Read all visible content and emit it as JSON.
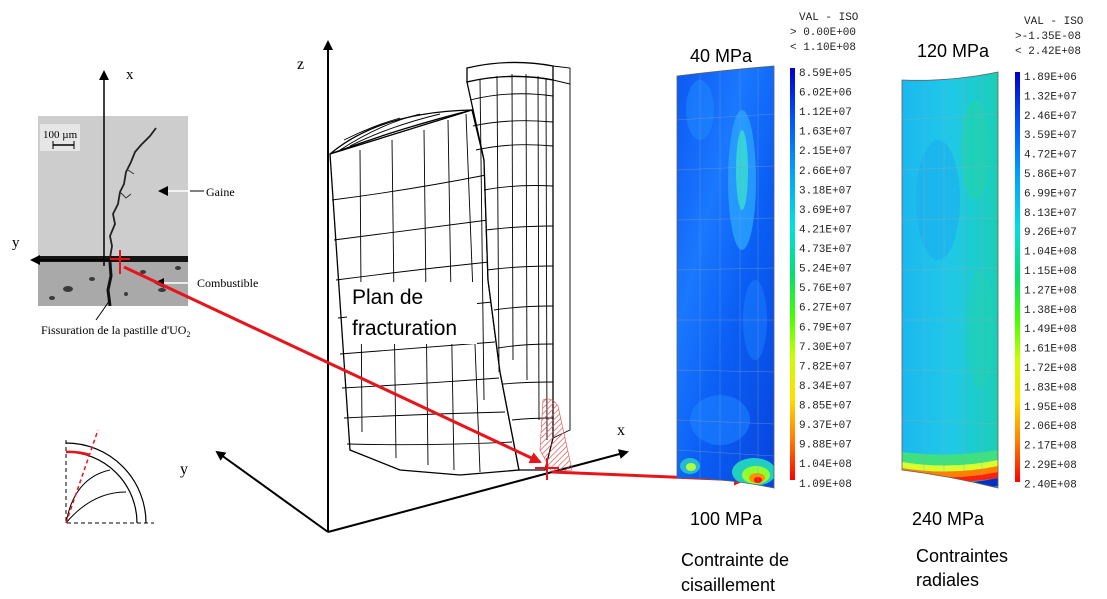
{
  "micrograph": {
    "axis_x": "x",
    "axis_y": "y",
    "scale_bar": "100 µm",
    "label_cladding": "Gaine",
    "label_fuel": "Combustible",
    "label_crack": "Fissuration de la pastille d'UO",
    "label_crack_sub": "2"
  },
  "mesh": {
    "axis_z": "z",
    "axis_x": "x",
    "axis_y": "y",
    "plane_label_line1": "Plan de",
    "plane_label_line2": "fracturation"
  },
  "shear_map": {
    "top_value": "40 MPa",
    "bottom_value": "100 MPa",
    "caption_line1": "Contrainte de",
    "caption_line2": "cisaillement",
    "legend_header": [
      "VAL - ISO",
      "> 0.00E+00",
      "< 1.10E+08"
    ],
    "legend_values": [
      "8.59E+05",
      "6.02E+06",
      "1.12E+07",
      "1.63E+07",
      "2.15E+07",
      "2.66E+07",
      "3.18E+07",
      "3.69E+07",
      "4.21E+07",
      "4.73E+07",
      "5.24E+07",
      "5.76E+07",
      "6.27E+07",
      "6.79E+07",
      "7.30E+07",
      "7.82E+07",
      "8.34E+07",
      "8.85E+07",
      "9.37E+07",
      "9.88E+07",
      "1.04E+08",
      "1.09E+08"
    ]
  },
  "radial_map": {
    "top_value": "120 MPa",
    "bottom_value": "240 MPa",
    "caption_line1": "Contraintes",
    "caption_line2": "radiales",
    "legend_header": [
      "VAL - ISO",
      ">-1.35E-08",
      "< 2.42E+08"
    ],
    "legend_values": [
      "1.89E+06",
      "1.32E+07",
      "2.46E+07",
      "3.59E+07",
      "4.72E+07",
      "5.86E+07",
      "6.99E+07",
      "8.13E+07",
      "9.26E+07",
      "1.04E+08",
      "1.15E+08",
      "1.27E+08",
      "1.38E+08",
      "1.49E+08",
      "1.61E+08",
      "1.72E+08",
      "1.83E+08",
      "1.95E+08",
      "2.06E+08",
      "2.17E+08",
      "2.29E+08",
      "2.40E+08"
    ]
  },
  "colors": {
    "arrow": "#e8141c",
    "colorbar_stops": [
      "#0000cc",
      "#0050ff",
      "#00a0ff",
      "#00e0e0",
      "#00e070",
      "#40ff00",
      "#c8ff00",
      "#ffe000",
      "#ff8000",
      "#ff0000"
    ]
  }
}
